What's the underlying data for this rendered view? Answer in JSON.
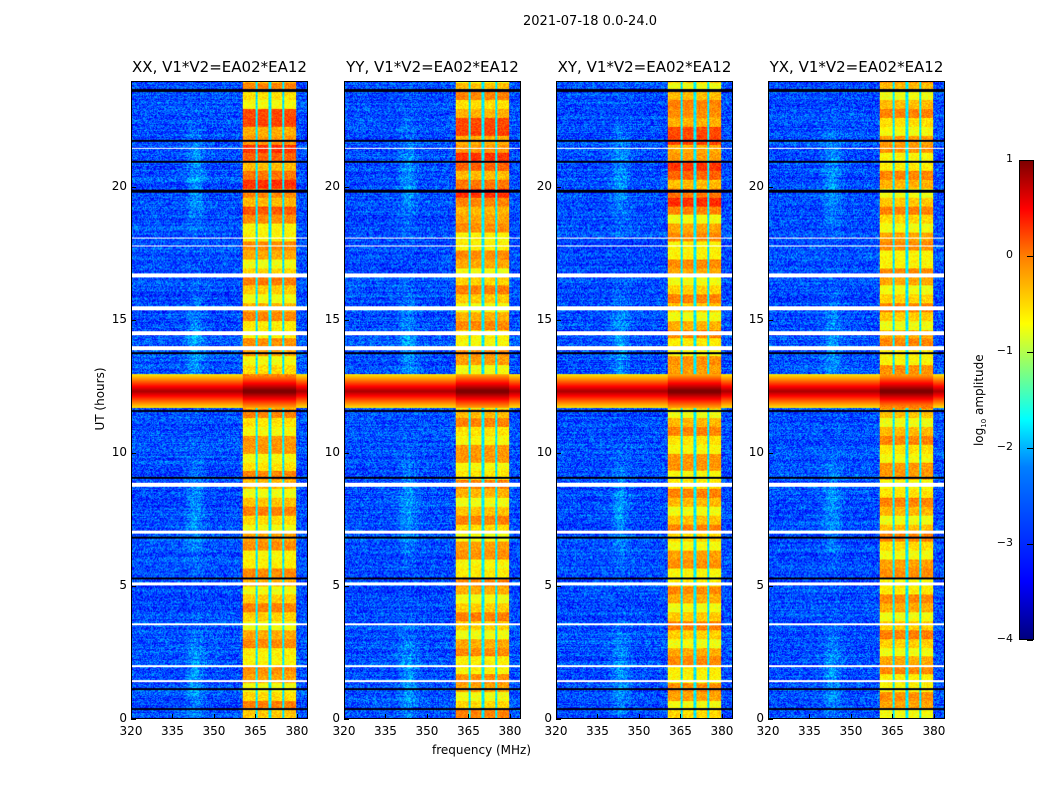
{
  "suptitle": "2021-07-18 0.0-24.0",
  "xlabel": "frequency (MHz)",
  "ylabel": "UT (hours)",
  "colorbar": {
    "label": "log10 amplitude",
    "label_main": "log",
    "label_sub": "10",
    "label_rest": " amplitude",
    "ticks": [
      1,
      0,
      -1,
      -2,
      -3,
      -4
    ],
    "tick_labels": [
      "1",
      "0",
      "−1",
      "−2",
      "−3",
      "−4"
    ],
    "range": [
      -4,
      1
    ],
    "colormap": "jet"
  },
  "chart_data": {
    "type": "heatmap",
    "title": "2021-07-18 0.0-24.0",
    "xlabel": "frequency (MHz)",
    "ylabel": "UT (hours)",
    "xlim": [
      320,
      384
    ],
    "ylim": [
      0,
      24
    ],
    "xticks": [
      320,
      335,
      350,
      365,
      380
    ],
    "xtick_labels": [
      "320",
      "335",
      "350",
      "365",
      "380"
    ],
    "yticks": [
      0,
      5,
      10,
      15,
      20
    ],
    "ytick_labels": [
      "0",
      "5",
      "10",
      "15",
      "20"
    ],
    "zlabel": "log10 amplitude",
    "zlim": [
      -4,
      1
    ],
    "panels": [
      {
        "title": "XX, V1*V2=EA02*EA12",
        "pol": "XX"
      },
      {
        "title": "YY, V1*V2=EA02*EA12",
        "pol": "YY"
      },
      {
        "title": "XY, V1*V2=EA02*EA12",
        "pol": "XY"
      },
      {
        "title": "YX, V1*V2=EA02*EA12",
        "pol": "YX"
      }
    ],
    "background_level": -3.0,
    "rfi_band_mhz": [
      360.4,
      380
    ],
    "rfi_band_level": -0.6,
    "rfi_band_gaps_mhz": [
      365.3,
      370.3,
      375.2
    ],
    "broadband_rfi_hours": [
      11.7,
      13.0
    ],
    "broadband_rfi_level": 0.6,
    "flagged_hours": [
      [
        16.65,
        16.8
      ],
      [
        15.4,
        15.55
      ],
      [
        14.45,
        14.6
      ],
      [
        13.9,
        14.05
      ],
      [
        8.75,
        8.9
      ],
      [
        6.98,
        7.08
      ],
      [
        5.02,
        5.15
      ],
      [
        3.5,
        3.6
      ],
      [
        1.95,
        2.02
      ],
      [
        1.38,
        1.46
      ],
      [
        21.5,
        21.55
      ],
      [
        18.1,
        18.15
      ],
      [
        17.8,
        17.85
      ]
    ],
    "dark_hours": [
      23.7,
      21.8,
      21.0,
      19.9,
      13.78,
      11.6,
      9.08,
      6.83,
      5.3,
      1.1,
      0.35
    ]
  }
}
